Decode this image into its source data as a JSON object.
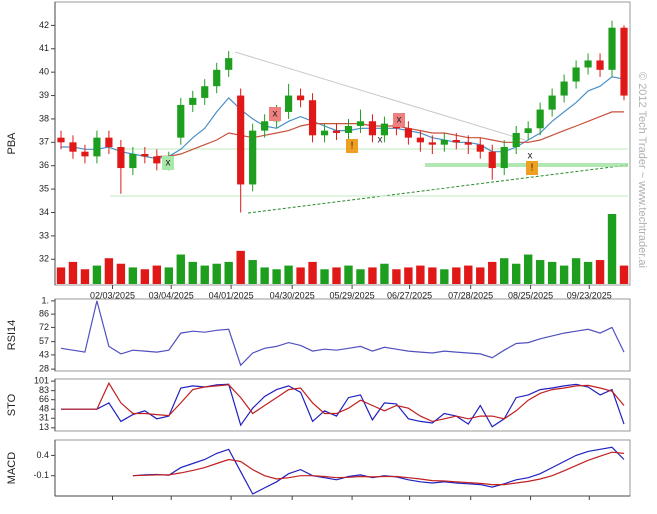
{
  "watermark": "© 2012 Tech Trader ~ www.techtrader.ai",
  "markers": [
    "x",
    "x",
    "x",
    "x",
    "!",
    "x",
    "!"
  ],
  "chart_data": [
    {
      "type": "candlestick",
      "ylabel": "PBA",
      "ylim": [
        30.9,
        43
      ],
      "yticks": [
        32,
        33,
        34,
        35,
        36,
        37,
        38,
        39,
        40,
        41,
        42
      ],
      "xticks": [
        {
          "value": 4.3,
          "label": "02/03/2025"
        },
        {
          "value": 9.2,
          "label": "03/04/2025"
        },
        {
          "value": 14.2,
          "label": "04/01/2025"
        },
        {
          "value": 19.3,
          "label": "04/30/2025"
        },
        {
          "value": 24.3,
          "label": "05/29/2025"
        },
        {
          "value": 29.1,
          "label": "06/27/2025"
        },
        {
          "value": 34.2,
          "label": "07/28/2025"
        },
        {
          "value": 39.2,
          "label": "08/25/2025"
        },
        {
          "value": 44.1,
          "label": "09/23/2025"
        }
      ],
      "up_color": "#1e9e1e",
      "down_color": "#e01818",
      "open": [
        37.2,
        37.0,
        36.6,
        36.4,
        37.2,
        36.8,
        35.9,
        36.5,
        36.4,
        36.1,
        37.2,
        38.6,
        38.9,
        39.4,
        40.1,
        39.0,
        35.2,
        37.5,
        37.9,
        38.3,
        39.0,
        38.8,
        37.3,
        37.5,
        37.4,
        37.7,
        37.9,
        37.3,
        37.8,
        37.6,
        37.2,
        37.0,
        36.9,
        37.1,
        37.0,
        36.9,
        36.6,
        35.9,
        36.8,
        37.4,
        37.6,
        38.4,
        39.0,
        39.6,
        40.2,
        40.5,
        40.1,
        41.9
      ],
      "high": [
        37.5,
        37.3,
        36.9,
        37.5,
        37.5,
        37.1,
        36.8,
        36.8,
        36.7,
        36.6,
        38.9,
        39.2,
        39.7,
        40.4,
        40.9,
        39.3,
        37.8,
        38.2,
        38.6,
        39.5,
        39.3,
        39.1,
        37.8,
        37.8,
        38.0,
        38.4,
        38.2,
        38.1,
        38.1,
        37.9,
        37.5,
        37.3,
        37.4,
        37.4,
        37.3,
        37.2,
        36.9,
        37.1,
        37.7,
        37.9,
        38.7,
        39.3,
        39.9,
        40.5,
        40.8,
        40.8,
        42.2,
        42.0
      ],
      "low": [
        36.7,
        36.3,
        36.1,
        36.1,
        36.5,
        34.8,
        35.6,
        36.1,
        35.8,
        35.8,
        36.9,
        38.3,
        38.6,
        39.1,
        39.8,
        34.0,
        34.9,
        37.2,
        37.6,
        38.0,
        38.5,
        37.0,
        37.0,
        37.1,
        37.1,
        37.4,
        37.0,
        37.0,
        37.3,
        36.9,
        36.6,
        36.5,
        36.6,
        36.7,
        36.5,
        36.3,
        35.4,
        35.6,
        36.5,
        37.1,
        37.3,
        38.1,
        38.7,
        39.3,
        39.9,
        39.8,
        39.8,
        38.8
      ],
      "close": [
        37.0,
        36.6,
        36.4,
        37.2,
        36.8,
        35.9,
        36.5,
        36.4,
        36.1,
        36.3,
        38.6,
        38.9,
        39.4,
        40.1,
        40.6,
        35.2,
        37.5,
        37.9,
        38.3,
        39.0,
        38.8,
        37.3,
        37.5,
        37.4,
        37.7,
        37.9,
        37.3,
        37.8,
        37.6,
        37.2,
        37.0,
        36.9,
        37.1,
        37.0,
        36.9,
        36.6,
        35.9,
        36.8,
        37.4,
        37.6,
        38.4,
        39.0,
        39.6,
        40.2,
        40.5,
        40.1,
        41.9,
        39.0
      ],
      "volume": [
        9,
        12,
        8,
        10,
        14,
        11,
        9,
        8,
        10,
        9,
        16,
        12,
        10,
        11,
        12,
        18,
        13,
        9,
        8,
        10,
        9,
        12,
        8,
        9,
        10,
        8,
        9,
        11,
        8,
        9,
        10,
        9,
        8,
        9,
        10,
        9,
        12,
        14,
        11,
        16,
        13,
        12,
        10,
        14,
        12,
        13,
        38,
        10
      ],
      "series": [
        {
          "color": "#4a90c8",
          "values": [
            36.8,
            36.8,
            36.7,
            36.7,
            36.8,
            36.6,
            36.5,
            36.4,
            36.3,
            36.4,
            36.7,
            37.2,
            37.6,
            38.3,
            38.9,
            38.4,
            38.0,
            37.7,
            37.6,
            37.9,
            38.1,
            37.9,
            37.7,
            37.5,
            37.5,
            37.6,
            37.6,
            37.6,
            37.6,
            37.5,
            37.4,
            37.2,
            37.1,
            37.0,
            37.0,
            36.9,
            36.6,
            36.6,
            36.8,
            37.1,
            37.4,
            37.9,
            38.3,
            38.7,
            39.2,
            39.4,
            39.8,
            39.7
          ]
        },
        {
          "color": "#c8503c",
          "values": [
            null,
            null,
            null,
            null,
            null,
            null,
            null,
            null,
            36.4,
            36.4,
            36.5,
            36.7,
            36.9,
            37.1,
            37.4,
            37.3,
            37.2,
            37.3,
            37.4,
            37.5,
            37.7,
            37.8,
            37.8,
            37.8,
            37.8,
            37.8,
            37.7,
            37.7,
            37.7,
            37.6,
            37.5,
            37.4,
            37.4,
            37.3,
            37.2,
            37.2,
            37.1,
            37.0,
            37.0,
            37.0,
            37.1,
            37.3,
            37.5,
            37.7,
            37.9,
            38.1,
            38.3,
            38.3
          ]
        }
      ]
    },
    {
      "type": "line",
      "ylabel": "RSI14",
      "ylim": [
        26,
        102
      ],
      "yticks": [
        {
          "value": 100,
          "label": "1."
        },
        86,
        72,
        57,
        43,
        28
      ],
      "series": [
        {
          "color": "#5050c0",
          "values": [
            50,
            48,
            46,
            100,
            52,
            44,
            48,
            47,
            46,
            48,
            66,
            68,
            67,
            69,
            70,
            32,
            45,
            50,
            52,
            56,
            53,
            47,
            49,
            48,
            50,
            52,
            47,
            51,
            49,
            47,
            46,
            45,
            47,
            46,
            45,
            44,
            40,
            48,
            55,
            56,
            60,
            63,
            66,
            68,
            70,
            66,
            72,
            46
          ]
        }
      ]
    },
    {
      "type": "line",
      "ylabel": "STO",
      "ylim": [
        7,
        105
      ],
      "yticks": [
        101,
        83,
        66,
        48,
        31,
        13
      ],
      "series": [
        {
          "color": "#2020c0",
          "values": [
            48,
            48,
            48,
            48,
            60,
            25,
            38,
            45,
            30,
            35,
            88,
            92,
            90,
            94,
            95,
            18,
            50,
            72,
            85,
            92,
            80,
            25,
            45,
            35,
            70,
            75,
            28,
            60,
            58,
            30,
            25,
            22,
            40,
            35,
            20,
            55,
            15,
            30,
            70,
            75,
            85,
            88,
            92,
            95,
            90,
            75,
            85,
            20
          ]
        },
        {
          "color": "#c02020",
          "values": [
            48,
            48,
            48,
            48,
            97,
            60,
            40,
            40,
            38,
            36,
            60,
            85,
            90,
            92,
            94,
            70,
            40,
            55,
            70,
            85,
            88,
            60,
            40,
            40,
            50,
            65,
            55,
            45,
            55,
            50,
            35,
            25,
            30,
            35,
            30,
            35,
            35,
            30,
            45,
            65,
            78,
            85,
            88,
            92,
            93,
            88,
            82,
            55
          ]
        }
      ]
    },
    {
      "type": "line",
      "ylabel": "MACD",
      "ylim": [
        -0.6,
        0.78
      ],
      "yticks": [
        0.4,
        -0.1
      ],
      "series": [
        {
          "color": "#2020c0",
          "values": [
            null,
            null,
            null,
            null,
            null,
            null,
            -0.1,
            -0.08,
            -0.07,
            -0.09,
            0.1,
            0.2,
            0.3,
            0.45,
            0.55,
            0.0,
            -0.55,
            -0.4,
            -0.25,
            -0.05,
            0.05,
            -0.1,
            -0.15,
            -0.2,
            -0.12,
            -0.08,
            -0.15,
            -0.1,
            -0.13,
            -0.2,
            -0.25,
            -0.28,
            -0.25,
            -0.28,
            -0.3,
            -0.32,
            -0.38,
            -0.3,
            -0.2,
            -0.15,
            -0.05,
            0.1,
            0.25,
            0.4,
            0.5,
            0.55,
            0.6,
            0.3
          ]
        },
        {
          "color": "#c02020",
          "values": [
            null,
            null,
            null,
            null,
            null,
            null,
            -0.1,
            -0.09,
            -0.08,
            -0.08,
            -0.03,
            0.03,
            0.1,
            0.2,
            0.3,
            0.25,
            0.05,
            -0.1,
            -0.18,
            -0.15,
            -0.1,
            -0.1,
            -0.12,
            -0.15,
            -0.14,
            -0.12,
            -0.13,
            -0.12,
            -0.12,
            -0.15,
            -0.18,
            -0.22,
            -0.23,
            -0.25,
            -0.27,
            -0.29,
            -0.32,
            -0.32,
            -0.28,
            -0.24,
            -0.18,
            -0.1,
            0.02,
            0.15,
            0.28,
            0.38,
            0.48,
            0.45
          ]
        }
      ]
    }
  ]
}
